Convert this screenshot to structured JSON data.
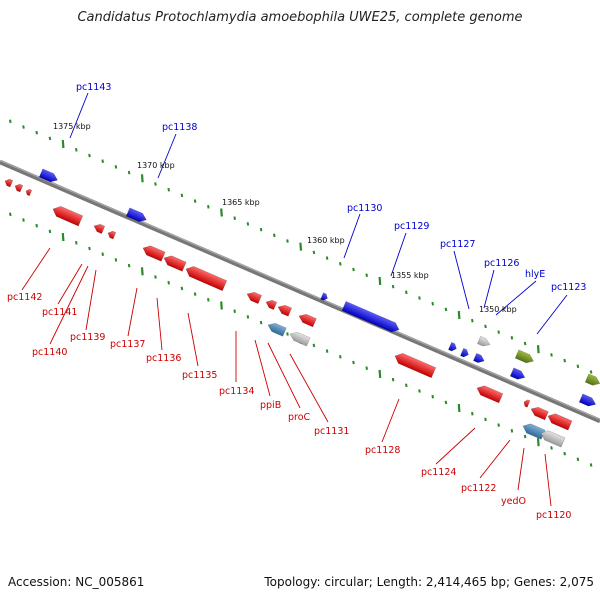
{
  "header": {
    "title": "Candidatus Protochlamydia amoebophila UWE25, complete genome"
  },
  "footer": {
    "accession": "Accession: NC_005861",
    "summary": "Topology: circular; Length: 2,414,465 bp; Genes: 2,075"
  },
  "scale_labels": [
    "1375 kbp",
    "1370 kbp",
    "1365 kbp",
    "1360 kbp",
    "1355 kbp",
    "1350 kbp"
  ],
  "forward_gene_labels": [
    "pc1143",
    "pc1138",
    "pc1130",
    "pc1129",
    "pc1127",
    "pc1126",
    "hlyE",
    "pc1123"
  ],
  "reverse_gene_labels": [
    "pc1142",
    "pc1141",
    "pc1140",
    "pc1139",
    "pc1137",
    "pc1136",
    "pc1135",
    "pc1134",
    "ppiB",
    "proC",
    "pc1131",
    "pc1128",
    "pc1124",
    "pc1122",
    "yedO",
    "pc1120"
  ],
  "colors": {
    "forward_gene": "#0000ee",
    "reverse_gene": "#ee0000",
    "rna_gene": "#4a86b8",
    "other_gene": "#b8b8b8",
    "olive_gene": "#6f8f1f",
    "tick": "#2a8a2a",
    "backbone": "#777777"
  }
}
